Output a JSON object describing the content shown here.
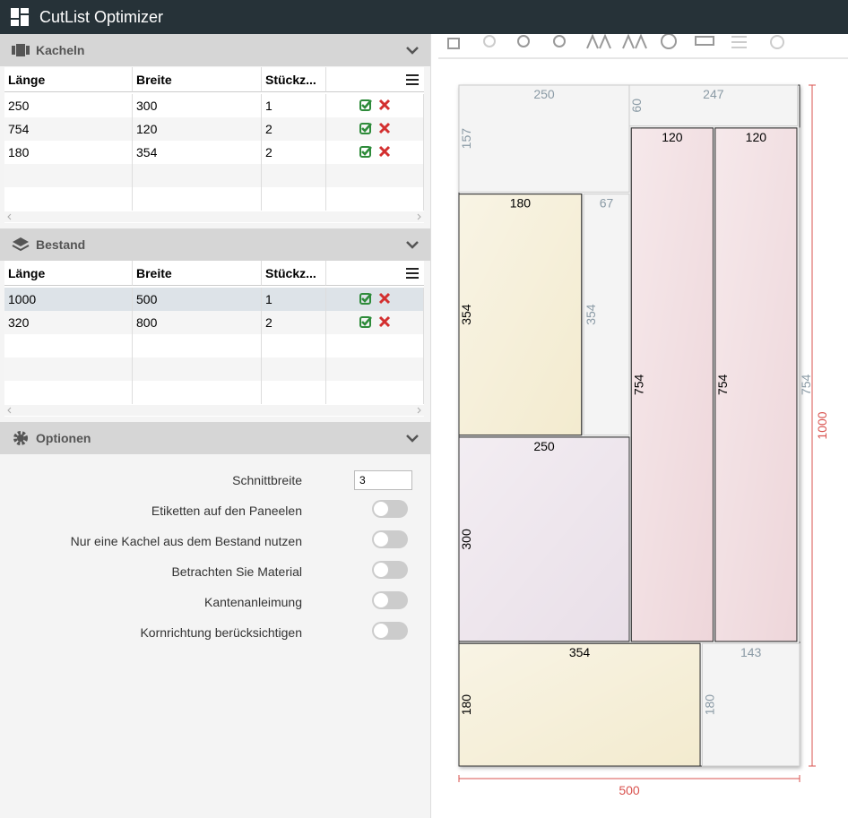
{
  "app": {
    "title": "CutList Optimizer"
  },
  "panels": {
    "tiles": {
      "title": "Kacheln",
      "columns": [
        "Länge",
        "Breite",
        "Stückz..."
      ],
      "rows": [
        [
          250,
          300,
          1
        ],
        [
          754,
          120,
          2
        ],
        [
          180,
          354,
          2
        ]
      ]
    },
    "stock": {
      "title": "Bestand",
      "columns": [
        "Länge",
        "Breite",
        "Stückz..."
      ],
      "rows": [
        [
          1000,
          500,
          1
        ],
        [
          320,
          800,
          2
        ]
      ]
    },
    "options": {
      "title": "Optionen",
      "kerf_label": "Schnittbreite",
      "kerf_value": "3",
      "toggles": [
        "Etiketten auf den Paneelen",
        "Nur eine Kachel aus dem Bestand nutzen",
        "Betrachten Sie Material",
        "Kantenanleimung",
        "Kornrichtung berücksichtigen"
      ]
    }
  },
  "layout": {
    "sheet": {
      "width": 500,
      "height": 1000,
      "dimension_color": "#d9534f"
    },
    "pieces": [
      {
        "width": 250,
        "height": 157,
        "color": "#f4f4f4",
        "text_color": "#8a9aa5"
      },
      {
        "width": 247,
        "height": 60,
        "color": "#f4f4f4",
        "text_color": "#8a9aa5"
      },
      {
        "width": 120,
        "height": 754,
        "color": "#eed6da",
        "text_color": "#000000"
      },
      {
        "width": 120,
        "height": 754,
        "color": "#eed6da",
        "text_color": "#000000"
      },
      {
        "width": 180,
        "height": 354,
        "color": "#f3ebcf",
        "text_color": "#000000"
      },
      {
        "width": 67,
        "height": 354,
        "color": "#f4f4f4",
        "text_color": "#8a9aa5"
      },
      {
        "width": 250,
        "height": 300,
        "color": "#e9dfe8",
        "text_color": "#000000"
      },
      {
        "width": 354,
        "height": 180,
        "color": "#f3ebcf",
        "text_color": "#000000"
      },
      {
        "width": 143,
        "height": 180,
        "color": "#f4f4f4",
        "text_color": "#8a9aa5"
      },
      {
        "height": 754,
        "color": "#f4f4f4",
        "text_color": "#8a9aa5"
      }
    ]
  }
}
